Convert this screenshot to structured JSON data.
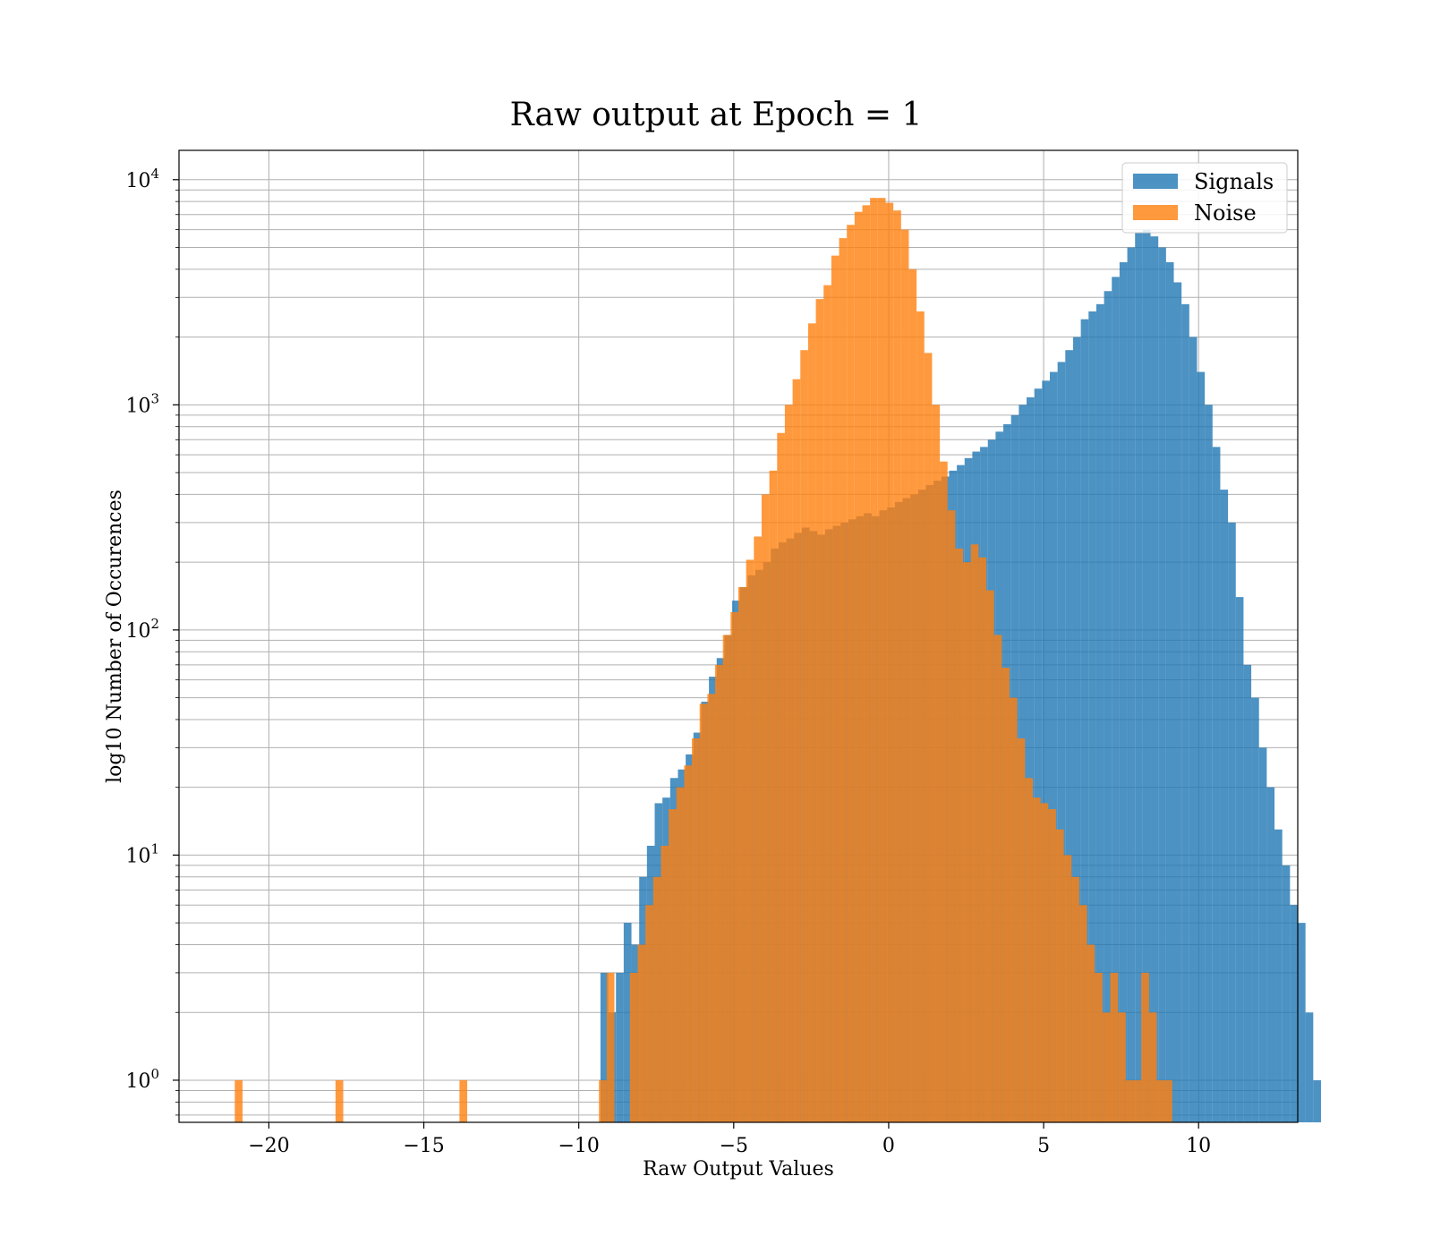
{
  "chart_data": {
    "type": "bar",
    "title": "Raw output at Epoch = 1",
    "xlabel": "Raw Output Values",
    "ylabel": "log10 Number of Occurences",
    "xlim": [
      -22.9,
      13.2
    ],
    "ylim": [
      0.65,
      13500
    ],
    "yscale": "log",
    "grid": true,
    "legend_position": "top-right",
    "x_ticks": [
      {
        "value": -20,
        "label": "−20"
      },
      {
        "value": -15,
        "label": "−15"
      },
      {
        "value": -10,
        "label": "−10"
      },
      {
        "value": -5,
        "label": "−5"
      },
      {
        "value": 0,
        "label": "0"
      },
      {
        "value": 5,
        "label": "5"
      },
      {
        "value": 10,
        "label": "10"
      }
    ],
    "y_ticks": [
      {
        "value": 1,
        "base": "10",
        "exp": "0"
      },
      {
        "value": 10,
        "base": "10",
        "exp": "1"
      },
      {
        "value": 100,
        "base": "10",
        "exp": "2"
      },
      {
        "value": 1000,
        "base": "10",
        "exp": "3"
      },
      {
        "value": 10000,
        "base": "10",
        "exp": "4"
      }
    ],
    "series": [
      {
        "name": "Signals",
        "color": "#1f77b4",
        "opacity": 0.8,
        "bin_start": -9.3,
        "bin_width": 0.25,
        "values": [
          3,
          2,
          3,
          5,
          4,
          8,
          11,
          17,
          18,
          22,
          24,
          28,
          35,
          48,
          62,
          75,
          95,
          135,
          155,
          175,
          185,
          200,
          230,
          245,
          255,
          270,
          285,
          275,
          265,
          280,
          290,
          300,
          310,
          320,
          330,
          320,
          340,
          350,
          370,
          385,
          400,
          420,
          440,
          460,
          480,
          510,
          540,
          580,
          620,
          650,
          700,
          760,
          820,
          900,
          1000,
          1080,
          1180,
          1280,
          1400,
          1550,
          1750,
          2000,
          2400,
          2600,
          2800,
          3200,
          3700,
          4300,
          5000,
          5800,
          6000,
          5600,
          5000,
          4300,
          3500,
          2800,
          2000,
          1400,
          1000,
          650,
          420,
          300,
          140,
          70,
          50,
          30,
          20,
          13,
          9,
          6,
          5,
          2,
          1
        ]
      },
      {
        "name": "Noise",
        "color": "#ff7f0e",
        "opacity": 0.8,
        "bin_start": -21.1,
        "bin_width": 0.25,
        "values": [
          1,
          0,
          0,
          0,
          0,
          0,
          0,
          0,
          0,
          0,
          0,
          0,
          0,
          1,
          0,
          0,
          0,
          0,
          0,
          0,
          0,
          0,
          0,
          0,
          0,
          0,
          0,
          0,
          0,
          1,
          0,
          0,
          0,
          0,
          0,
          0,
          0,
          0,
          0,
          0,
          0,
          0,
          0,
          0,
          0,
          0,
          0,
          1,
          3,
          0,
          0,
          3,
          4,
          6,
          8,
          11,
          16,
          20,
          25,
          33,
          47,
          52,
          70,
          95,
          120,
          155,
          205,
          260,
          400,
          510,
          750,
          1000,
          1300,
          1750,
          2300,
          2950,
          3400,
          4600,
          5500,
          6300,
          7200,
          7700,
          8300,
          8300,
          7900,
          7300,
          6000,
          4000,
          2600,
          1700,
          1000,
          560,
          340,
          230,
          200,
          240,
          210,
          150,
          95,
          68,
          50,
          33,
          22,
          18,
          17,
          16,
          13,
          10,
          8,
          6,
          4,
          3,
          2,
          3,
          2,
          1,
          1,
          3,
          2,
          1,
          1
        ]
      }
    ]
  }
}
